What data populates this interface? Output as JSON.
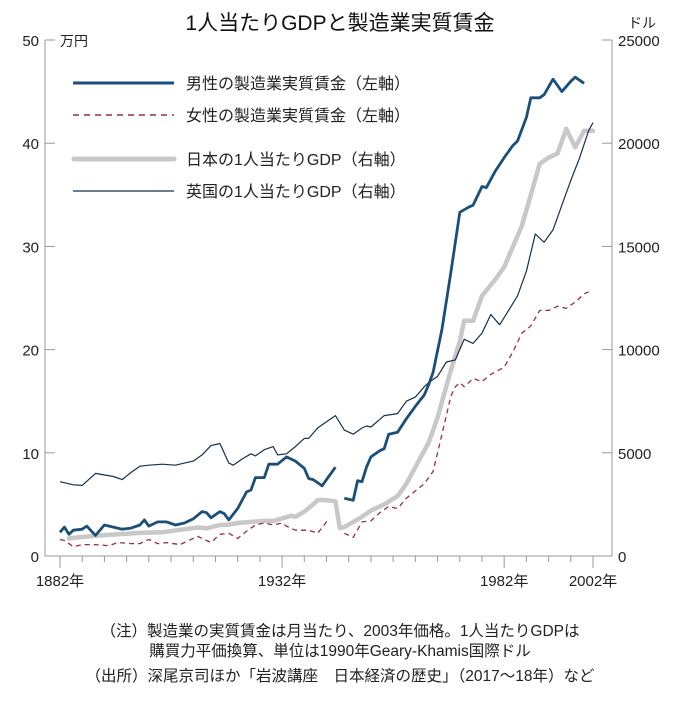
{
  "chart_data": {
    "type": "line",
    "title": "1人当たりGDPと製造業実質賃金",
    "left_axis": {
      "unit": "万円",
      "ylim": [
        0,
        50
      ],
      "ticks": [
        0,
        10,
        20,
        30,
        40,
        50
      ]
    },
    "right_axis": {
      "unit": "ドル",
      "ylim": [
        0,
        25000
      ],
      "ticks": [
        0,
        5000,
        10000,
        15000,
        20000,
        25000
      ]
    },
    "x_axis": {
      "xlim": [
        1882,
        2002
      ],
      "tick_step": 5,
      "labels": [
        {
          "year": 1882,
          "text": "1882年"
        },
        {
          "year": 1932,
          "text": "1932年"
        },
        {
          "year": 1982,
          "text": "1982年"
        },
        {
          "year": 2002,
          "text": "2002年"
        }
      ]
    },
    "legend_position": "top-left",
    "series": [
      {
        "name": "男性の製造業実質賃金（左軸）",
        "axis": "left",
        "color": "#1a4f7a",
        "style": "solid-thick",
        "points": [
          [
            1882,
            2.3
          ],
          [
            1883,
            2.8
          ],
          [
            1884,
            2.1
          ],
          [
            1885,
            2.5
          ],
          [
            1887,
            2.6
          ],
          [
            1888,
            2.9
          ],
          [
            1890,
            2.0
          ],
          [
            1892,
            3.0
          ],
          [
            1894,
            2.8
          ],
          [
            1896,
            2.6
          ],
          [
            1898,
            2.7
          ],
          [
            1900,
            3.0
          ],
          [
            1901,
            3.5
          ],
          [
            1902,
            2.9
          ],
          [
            1904,
            3.3
          ],
          [
            1906,
            3.3
          ],
          [
            1908,
            3.0
          ],
          [
            1910,
            3.2
          ],
          [
            1912,
            3.6
          ],
          [
            1914,
            4.3
          ],
          [
            1915,
            4.2
          ],
          [
            1916,
            3.7
          ],
          [
            1918,
            4.3
          ],
          [
            1919,
            4.1
          ],
          [
            1920,
            3.5
          ],
          [
            1922,
            4.6
          ],
          [
            1924,
            6.2
          ],
          [
            1925,
            6.4
          ],
          [
            1926,
            7.6
          ],
          [
            1928,
            7.6
          ],
          [
            1929,
            8.9
          ],
          [
            1931,
            8.9
          ],
          [
            1933,
            9.6
          ],
          [
            1935,
            9.2
          ],
          [
            1937,
            8.5
          ],
          [
            1938,
            7.5
          ],
          [
            1939,
            7.4
          ],
          [
            1941,
            6.8
          ],
          [
            1944,
            8.6
          ],
          null,
          [
            1946,
            5.6
          ],
          [
            1948,
            5.4
          ],
          [
            1949,
            7.3
          ],
          [
            1950,
            7.2
          ],
          [
            1951,
            8.6
          ],
          [
            1952,
            9.6
          ],
          [
            1954,
            10.2
          ],
          [
            1955,
            10.4
          ],
          [
            1956,
            11.8
          ],
          [
            1958,
            12.0
          ],
          [
            1960,
            13.3
          ],
          [
            1962,
            14.5
          ],
          [
            1964,
            15.6
          ],
          [
            1965,
            16.6
          ],
          [
            1966,
            17.8
          ],
          [
            1968,
            22.0
          ],
          [
            1970,
            27.5
          ],
          [
            1972,
            33.3
          ],
          [
            1974,
            33.8
          ],
          [
            1975,
            34.0
          ],
          [
            1977,
            35.8
          ],
          [
            1978,
            35.7
          ],
          [
            1980,
            37.3
          ],
          [
            1982,
            38.6
          ],
          [
            1984,
            39.8
          ],
          [
            1985,
            40.2
          ],
          [
            1987,
            42.5
          ],
          [
            1988,
            44.4
          ],
          [
            1990,
            44.4
          ],
          [
            1991,
            44.7
          ],
          [
            1993,
            46.2
          ],
          [
            1995,
            45.0
          ],
          [
            1997,
            46.0
          ],
          [
            1998,
            46.4
          ],
          [
            2000,
            45.8
          ]
        ]
      },
      {
        "name": "女性の製造業実質賃金（左軸）",
        "axis": "left",
        "color": "#9b2d44",
        "style": "dashed",
        "points": [
          [
            1882,
            1.6
          ],
          [
            1883,
            1.5
          ],
          [
            1885,
            0.9
          ],
          [
            1887,
            1.1
          ],
          [
            1890,
            1.1
          ],
          [
            1893,
            1.0
          ],
          [
            1895,
            1.3
          ],
          [
            1898,
            1.2
          ],
          [
            1900,
            1.2
          ],
          [
            1902,
            1.6
          ],
          [
            1904,
            1.2
          ],
          [
            1906,
            1.3
          ],
          [
            1909,
            1.1
          ],
          [
            1911,
            1.5
          ],
          [
            1913,
            1.9
          ],
          [
            1916,
            1.3
          ],
          [
            1918,
            2.1
          ],
          [
            1920,
            2.2
          ],
          [
            1922,
            1.7
          ],
          [
            1924,
            2.4
          ],
          [
            1926,
            3.0
          ],
          [
            1928,
            3.2
          ],
          [
            1930,
            3.0
          ],
          [
            1932,
            3.2
          ],
          [
            1933,
            2.9
          ],
          [
            1935,
            2.5
          ],
          [
            1938,
            2.5
          ],
          [
            1940,
            2.2
          ],
          [
            1942,
            3.3
          ],
          [
            1943,
            3.4
          ],
          null,
          [
            1946,
            2.2
          ],
          [
            1948,
            1.8
          ],
          [
            1950,
            3.3
          ],
          [
            1952,
            3.4
          ],
          [
            1954,
            4.2
          ],
          [
            1956,
            4.8
          ],
          [
            1958,
            4.6
          ],
          [
            1960,
            5.6
          ],
          [
            1962,
            6.3
          ],
          [
            1964,
            7.0
          ],
          [
            1966,
            8.2
          ],
          [
            1968,
            11.8
          ],
          [
            1970,
            15.5
          ],
          [
            1971,
            16.4
          ],
          [
            1972,
            16.8
          ],
          [
            1973,
            16.4
          ],
          [
            1975,
            17.2
          ],
          [
            1977,
            16.9
          ],
          [
            1979,
            17.6
          ],
          [
            1982,
            18.3
          ],
          [
            1984,
            19.8
          ],
          [
            1986,
            21.6
          ],
          [
            1988,
            22.3
          ],
          [
            1990,
            23.8
          ],
          [
            1992,
            23.8
          ],
          [
            1994,
            24.2
          ],
          [
            1996,
            24.0
          ],
          [
            1998,
            24.6
          ],
          [
            2000,
            25.4
          ],
          [
            2001,
            25.6
          ]
        ]
      },
      {
        "name": "日本の1人当たりGDP（右軸）",
        "axis": "right",
        "color": "#c8c8c8",
        "style": "solid-heavy",
        "points": [
          [
            1884,
            850
          ],
          [
            1886,
            900
          ],
          [
            1890,
            980
          ],
          [
            1895,
            1050
          ],
          [
            1900,
            1120
          ],
          [
            1905,
            1150
          ],
          [
            1910,
            1300
          ],
          [
            1913,
            1380
          ],
          [
            1915,
            1340
          ],
          [
            1918,
            1500
          ],
          [
            1920,
            1520
          ],
          [
            1922,
            1600
          ],
          [
            1925,
            1650
          ],
          [
            1928,
            1700
          ],
          [
            1930,
            1700
          ],
          [
            1932,
            1820
          ],
          [
            1934,
            1950
          ],
          [
            1935,
            1900
          ],
          [
            1937,
            2150
          ],
          [
            1939,
            2500
          ],
          [
            1940,
            2700
          ],
          [
            1941,
            2720
          ],
          [
            1943,
            2680
          ],
          [
            1944,
            2650
          ],
          [
            1945,
            1350
          ],
          [
            1946,
            1400
          ],
          [
            1948,
            1650
          ],
          [
            1950,
            1900
          ],
          [
            1952,
            2200
          ],
          [
            1955,
            2500
          ],
          [
            1958,
            2900
          ],
          [
            1960,
            3500
          ],
          [
            1962,
            4300
          ],
          [
            1965,
            5500
          ],
          [
            1967,
            6700
          ],
          [
            1970,
            9000
          ],
          [
            1972,
            10400
          ],
          [
            1973,
            11400
          ],
          [
            1975,
            11400
          ],
          [
            1977,
            12600
          ],
          [
            1980,
            13400
          ],
          [
            1982,
            14000
          ],
          [
            1984,
            15000
          ],
          [
            1986,
            16000
          ],
          [
            1988,
            17500
          ],
          [
            1990,
            19000
          ],
          [
            1992,
            19300
          ],
          [
            1994,
            19500
          ],
          [
            1996,
            20700
          ],
          [
            1998,
            19800
          ],
          [
            2000,
            20600
          ],
          [
            2002,
            20600
          ]
        ]
      },
      {
        "name": "英国の1人当たりGDP（右軸）",
        "axis": "right",
        "color": "#16304f",
        "style": "solid-thin",
        "points": [
          [
            1882,
            3600
          ],
          [
            1885,
            3450
          ],
          [
            1887,
            3420
          ],
          [
            1890,
            4000
          ],
          [
            1894,
            3850
          ],
          [
            1896,
            3700
          ],
          [
            1898,
            4050
          ],
          [
            1900,
            4350
          ],
          [
            1902,
            4400
          ],
          [
            1905,
            4450
          ],
          [
            1908,
            4400
          ],
          [
            1910,
            4500
          ],
          [
            1912,
            4600
          ],
          [
            1914,
            4900
          ],
          [
            1916,
            5350
          ],
          [
            1918,
            5450
          ],
          [
            1920,
            4500
          ],
          [
            1921,
            4400
          ],
          [
            1923,
            4700
          ],
          [
            1925,
            4950
          ],
          [
            1926,
            4850
          ],
          [
            1928,
            5150
          ],
          [
            1930,
            5300
          ],
          [
            1931,
            4900
          ],
          [
            1933,
            4950
          ],
          [
            1935,
            5300
          ],
          [
            1937,
            5700
          ],
          [
            1938,
            5700
          ],
          [
            1940,
            6200
          ],
          [
            1942,
            6500
          ],
          [
            1944,
            6800
          ],
          [
            1946,
            6100
          ],
          [
            1948,
            5900
          ],
          [
            1950,
            6200
          ],
          [
            1951,
            6300
          ],
          [
            1952,
            6250
          ],
          [
            1955,
            6800
          ],
          [
            1958,
            6900
          ],
          [
            1960,
            7500
          ],
          [
            1962,
            7700
          ],
          [
            1964,
            8200
          ],
          [
            1965,
            8400
          ],
          [
            1967,
            8700
          ],
          [
            1969,
            9400
          ],
          [
            1971,
            9500
          ],
          [
            1973,
            10500
          ],
          [
            1975,
            10300
          ],
          [
            1977,
            10800
          ],
          [
            1979,
            11700
          ],
          [
            1981,
            11200
          ],
          [
            1983,
            11900
          ],
          [
            1985,
            12600
          ],
          [
            1987,
            13800
          ],
          [
            1989,
            15600
          ],
          [
            1991,
            15200
          ],
          [
            1993,
            15800
          ],
          [
            1995,
            17000
          ],
          [
            1997,
            18200
          ],
          [
            1999,
            19300
          ],
          [
            2001,
            20600
          ],
          [
            2002,
            21000
          ]
        ]
      }
    ]
  },
  "legend": {
    "items": [
      {
        "label": "男性の製造業実質賃金（左軸）"
      },
      {
        "label": "女性の製造業実質賃金（左軸）"
      },
      {
        "label": "日本の1人当たりGDP（右軸）"
      },
      {
        "label": "英国の1人当たりGDP（右軸）"
      }
    ]
  },
  "notes": {
    "note_line1": "（注）製造業の実質賃金は月当たり、2003年価格。1人当たりGDPは",
    "note_line2": "購買力平価換算、単位は1990年Geary-Khamis国際ドル",
    "source_line": "（出所）深尾京司ほか「岩波講座　日本経済の歴史」（2017～18年）など"
  }
}
